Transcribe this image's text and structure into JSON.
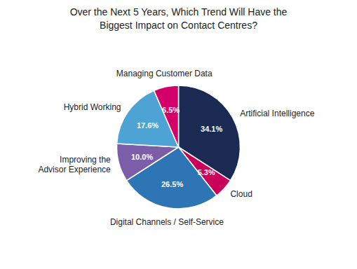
{
  "chart_data": {
    "type": "pie",
    "title": "Over the Next 5 Years, Which Trend Will Have the\nBiggest Impact on Contact Centres?",
    "categories": [
      "Artificial Intelligence",
      "Cloud",
      "Digital Channels / Self-Service",
      "Improving the\nAdvisor Experience",
      "Hybrid Working",
      "Managing Customer Data"
    ],
    "values": [
      34.1,
      5.3,
      26.5,
      10.0,
      17.6,
      6.5
    ],
    "value_labels": [
      "34.1%",
      "5.3%",
      "26.5%",
      "10.0%",
      "17.6%",
      "6.5%"
    ],
    "colors": [
      "#1b2a52",
      "#c8005a",
      "#2e75b6",
      "#7b5ea7",
      "#4da3d4",
      "#d4006a"
    ],
    "data_labels": true
  }
}
